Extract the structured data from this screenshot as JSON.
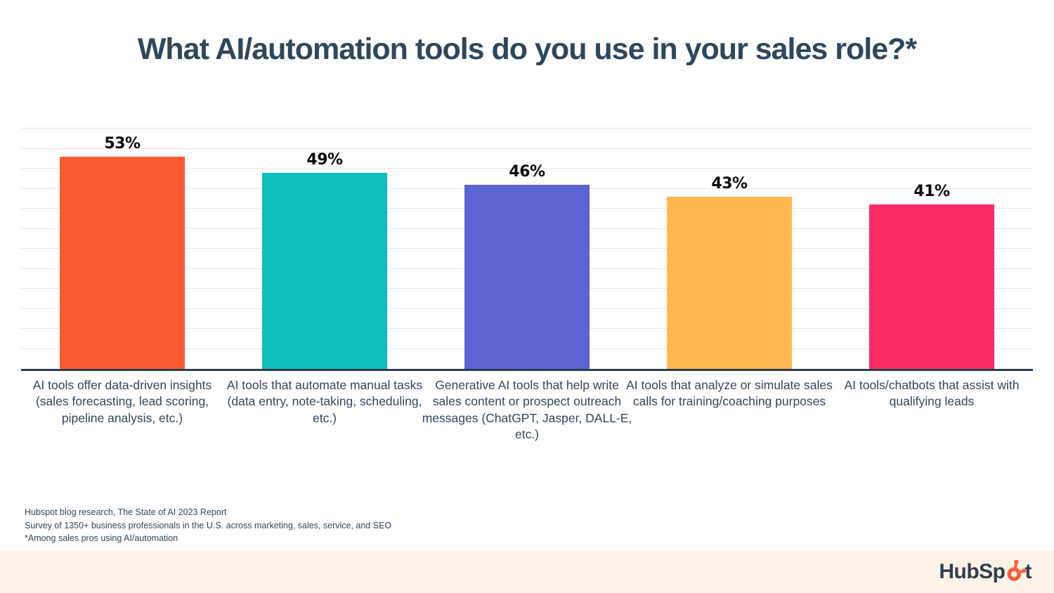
{
  "title": "What AI/automation tools do you use in your sales role?*",
  "chart_data": {
    "type": "bar",
    "title": "What AI/automation tools do you use in your sales role?*",
    "categories": [
      "AI tools offer data-driven insights (sales forecasting, lead scoring, pipeline analysis, etc.)",
      "AI tools that automate manual tasks (data entry, note-taking, scheduling, etc.)",
      "Generative AI tools that help write sales content or prospect outreach messages (ChatGPT, Jasper, DALL-E, etc.)",
      "AI tools that analyze or simulate sales calls for training/coaching purposes",
      "AI tools/chatbots that assist with qualifying leads"
    ],
    "values": [
      53,
      49,
      46,
      43,
      41
    ],
    "value_labels": [
      "53%",
      "49%",
      "46%",
      "43%",
      "41%"
    ],
    "bar_colors": [
      "#FB5A33",
      "#0FBEBE",
      "#5C63D2",
      "#FEB84D",
      "#F72A64"
    ],
    "xlabel": "",
    "ylabel": "",
    "ylim": [
      0,
      60
    ],
    "grid_step": 5,
    "grid": true,
    "legend": "none"
  },
  "footer": {
    "line1": "Hubspot blog research, The State of AI 2023 Report",
    "line2": "Survey of 1350+ business professionals in the U.S. across marketing, sales, service, and SEO",
    "line3": "*Among sales pros using AI/automation"
  },
  "logo": {
    "name": "HubSpot",
    "prefix": "HubSp",
    "suffix": "t",
    "accent": "#FF5C35",
    "text_color": "#2E3F50"
  },
  "colors": {
    "title_text": "#2E475D",
    "body_text": "#33475B",
    "value_text": "#0A0A0A",
    "gridline": "#E2E5E8",
    "axis": "#2D3E50",
    "strip_background": "#FDF3E8"
  }
}
